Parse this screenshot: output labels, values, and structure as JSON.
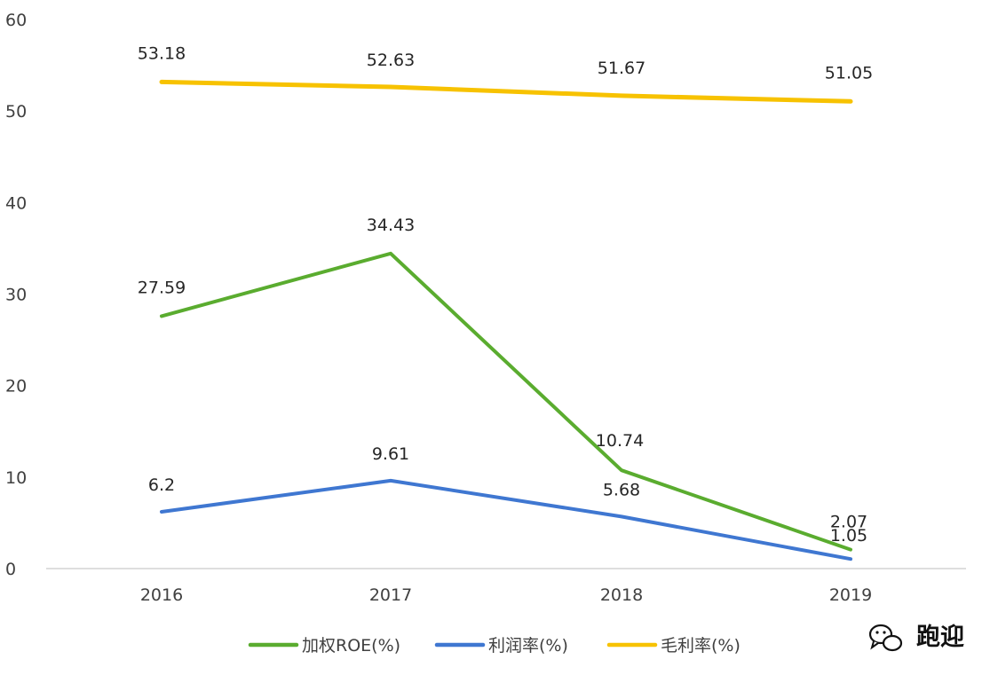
{
  "chart_data": {
    "type": "line",
    "title": "",
    "xlabel": "",
    "ylabel": "",
    "categories": [
      "2016",
      "2017",
      "2018",
      "2019"
    ],
    "ylim": [
      0,
      60
    ],
    "yticks": [
      0,
      10,
      20,
      30,
      40,
      50,
      60
    ],
    "ytick_labels": [
      "0",
      "10",
      "20",
      "30",
      "40",
      "50",
      "60"
    ],
    "grid": false,
    "legend_position": "bottom",
    "series": [
      {
        "name": "加权ROE(%)",
        "color": "#5aac2f",
        "values": [
          27.59,
          34.43,
          10.74,
          2.07
        ],
        "labels": [
          "27.59",
          "34.43",
          "10.74",
          "2.07"
        ]
      },
      {
        "name": "利润率(%)",
        "color": "#3f77d1",
        "values": [
          6.2,
          9.61,
          5.68,
          1.05
        ],
        "labels": [
          "6.2",
          "9.61",
          "5.68",
          "1.05"
        ]
      },
      {
        "name": "毛利率(%)",
        "color": "#f7c200",
        "values": [
          53.18,
          52.63,
          51.67,
          51.05
        ],
        "labels": [
          "53.18",
          "52.63",
          "51.67",
          "51.05"
        ]
      }
    ]
  },
  "watermark": {
    "text": "跑迎",
    "icon": "wechat-icon"
  }
}
